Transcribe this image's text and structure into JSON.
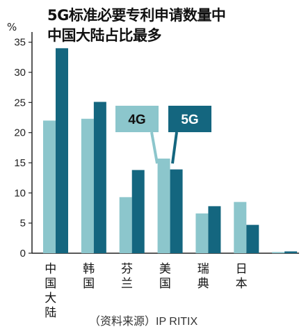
{
  "chart_data": {
    "type": "bar",
    "title_line1": "5G标准必要专利申请数量中",
    "title_line2": "中国大陆占比最多",
    "unit": "%",
    "categories": [
      "中国大陆",
      "韩国",
      "芬兰",
      "美国",
      "瑞典",
      "日本",
      ""
    ],
    "series": [
      {
        "name": "4G",
        "color": "#8cc6cc",
        "values": [
          22,
          22.3,
          9.3,
          15.7,
          6.6,
          8.5,
          0.2
        ]
      },
      {
        "name": "5G",
        "color": "#14667f",
        "values": [
          34,
          25.1,
          13.8,
          13.9,
          7.8,
          4.7,
          0.3
        ]
      }
    ],
    "yticks": [
      0,
      5,
      10,
      15,
      20,
      25,
      30,
      35
    ],
    "ylim": [
      0,
      36
    ],
    "grid": false,
    "legend_placement": "center",
    "source": "（资料来源）IP RITIX"
  }
}
